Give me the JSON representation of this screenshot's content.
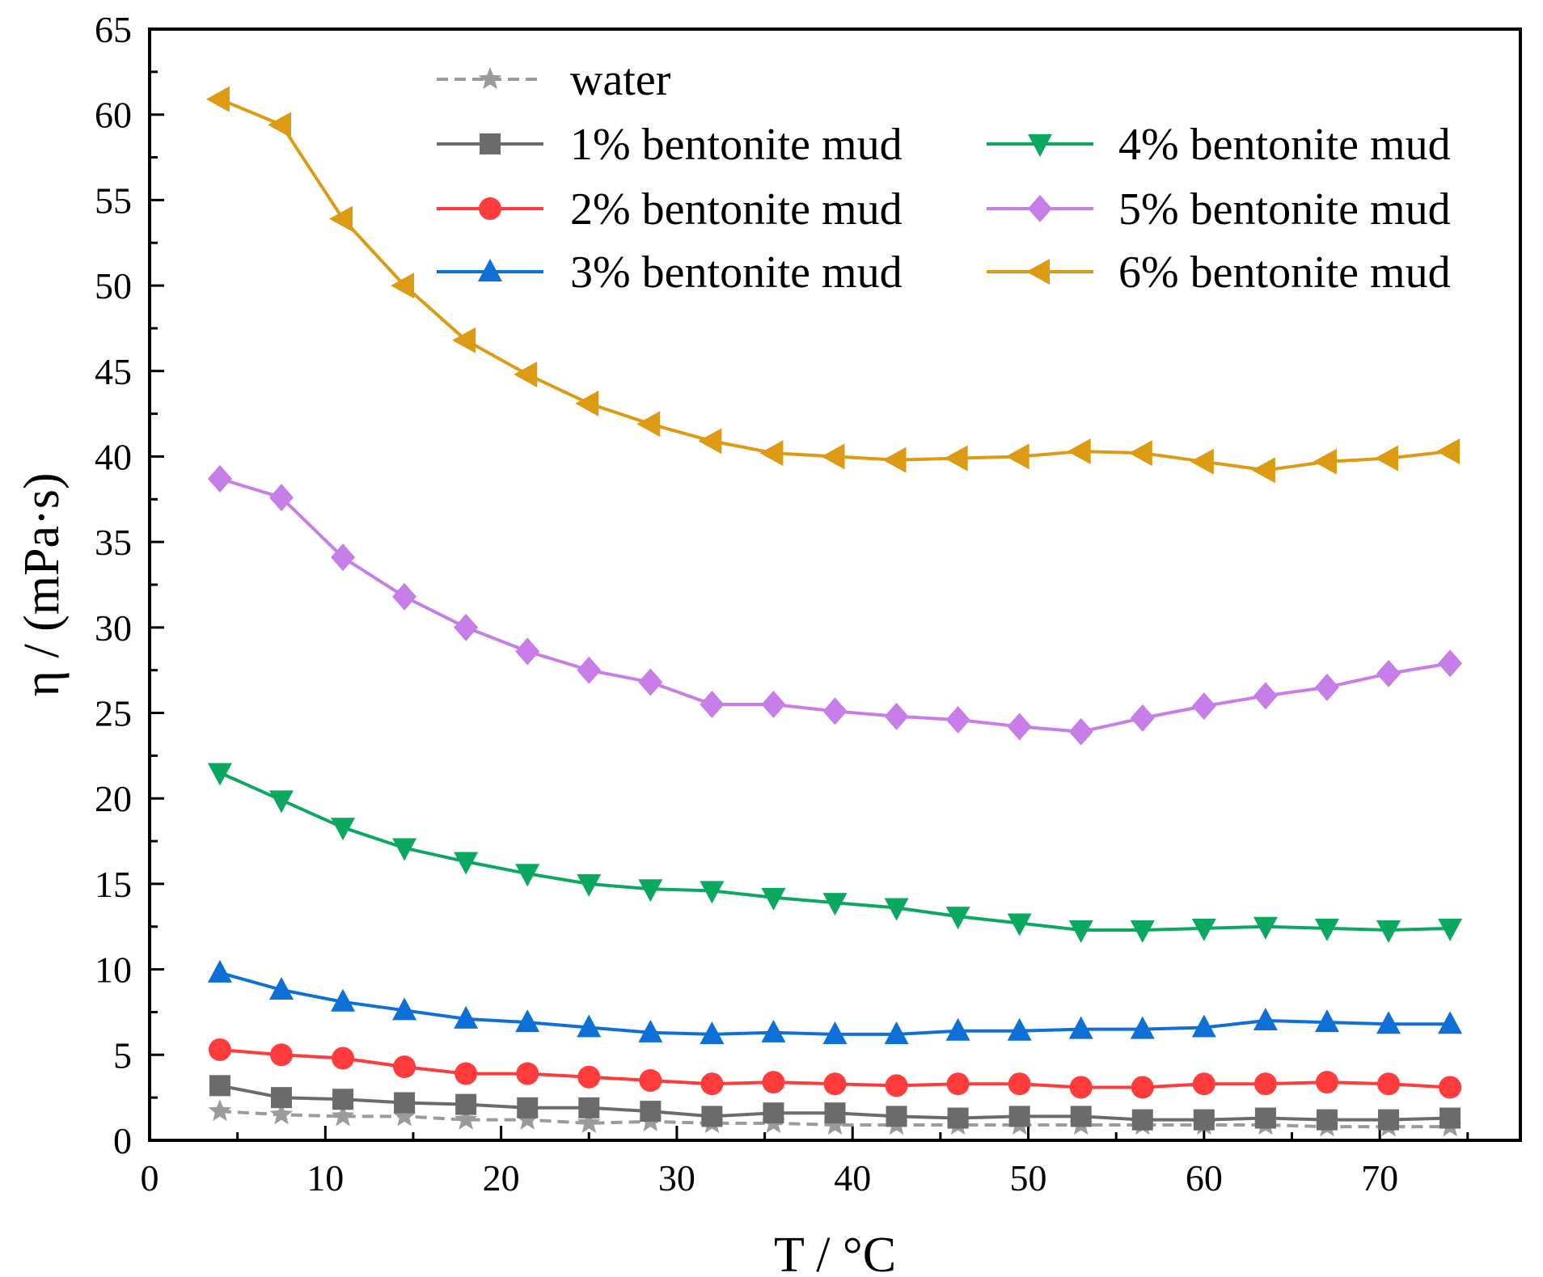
{
  "chart_data": {
    "type": "line",
    "title": "",
    "xlabel": "T / °C",
    "ylabel": "η / (mPa·s)",
    "xlim": [
      0,
      78
    ],
    "ylim": [
      0,
      65
    ],
    "xticks": [
      0,
      10,
      20,
      30,
      40,
      50,
      60,
      70
    ],
    "yticks": [
      0,
      5,
      10,
      15,
      20,
      25,
      30,
      35,
      40,
      45,
      50,
      55,
      60,
      65
    ],
    "legend_position": "top",
    "x": [
      4,
      7.5,
      11,
      14.5,
      18,
      21.5,
      25,
      28.5,
      32,
      35.5,
      39,
      42.5,
      46,
      49.5,
      53,
      56.5,
      60,
      63.5,
      67,
      70.5,
      74
    ],
    "series": [
      {
        "name": "water",
        "color": "#9b9b9b",
        "marker": "star",
        "dashed": true,
        "values": [
          1.7,
          1.5,
          1.4,
          1.4,
          1.2,
          1.2,
          1.0,
          1.1,
          1.0,
          1.0,
          0.9,
          0.9,
          0.9,
          0.9,
          0.9,
          0.9,
          0.9,
          0.9,
          0.8,
          0.8,
          0.8
        ]
      },
      {
        "name": "1% bentonite mud",
        "color": "#6b6b6b",
        "marker": "square",
        "values": [
          3.2,
          2.5,
          2.4,
          2.2,
          2.1,
          1.9,
          1.9,
          1.7,
          1.4,
          1.6,
          1.6,
          1.4,
          1.3,
          1.4,
          1.4,
          1.2,
          1.2,
          1.3,
          1.2,
          1.2,
          1.3
        ]
      },
      {
        "name": "2% bentonite mud",
        "color": "#ff3b3b",
        "marker": "circle",
        "values": [
          5.3,
          5.0,
          4.8,
          4.3,
          3.9,
          3.9,
          3.7,
          3.5,
          3.3,
          3.4,
          3.3,
          3.2,
          3.3,
          3.3,
          3.1,
          3.1,
          3.3,
          3.3,
          3.4,
          3.3,
          3.1
        ]
      },
      {
        "name": "3% bentonite mud",
        "color": "#0e6fd6",
        "marker": "triangle-up",
        "values": [
          9.8,
          8.8,
          8.1,
          7.6,
          7.1,
          6.9,
          6.6,
          6.3,
          6.2,
          6.3,
          6.2,
          6.2,
          6.4,
          6.4,
          6.5,
          6.5,
          6.6,
          7.0,
          6.9,
          6.8,
          6.8
        ]
      },
      {
        "name": "4% bentonite mud",
        "color": "#0ba85f",
        "marker": "triangle-down",
        "values": [
          21.5,
          19.9,
          18.3,
          17.1,
          16.3,
          15.6,
          15.0,
          14.7,
          14.6,
          14.2,
          13.9,
          13.6,
          13.1,
          12.7,
          12.3,
          12.3,
          12.4,
          12.5,
          12.4,
          12.3,
          12.4
        ]
      },
      {
        "name": "5% bentonite mud",
        "color": "#c77ee8",
        "marker": "diamond",
        "values": [
          38.7,
          37.6,
          34.1,
          31.8,
          30.0,
          28.6,
          27.5,
          26.8,
          25.5,
          25.5,
          25.1,
          24.8,
          24.6,
          24.2,
          23.9,
          24.7,
          25.4,
          26.0,
          26.5,
          27.3,
          27.9
        ]
      },
      {
        "name": "6% bentonite mud",
        "color": "#dc9b12",
        "marker": "triangle-left",
        "values": [
          60.9,
          59.4,
          53.9,
          50.0,
          46.8,
          44.8,
          43.1,
          41.9,
          40.9,
          40.2,
          40.0,
          39.8,
          39.9,
          40.0,
          40.3,
          40.2,
          39.7,
          39.2,
          39.7,
          39.9,
          40.3
        ]
      }
    ]
  }
}
